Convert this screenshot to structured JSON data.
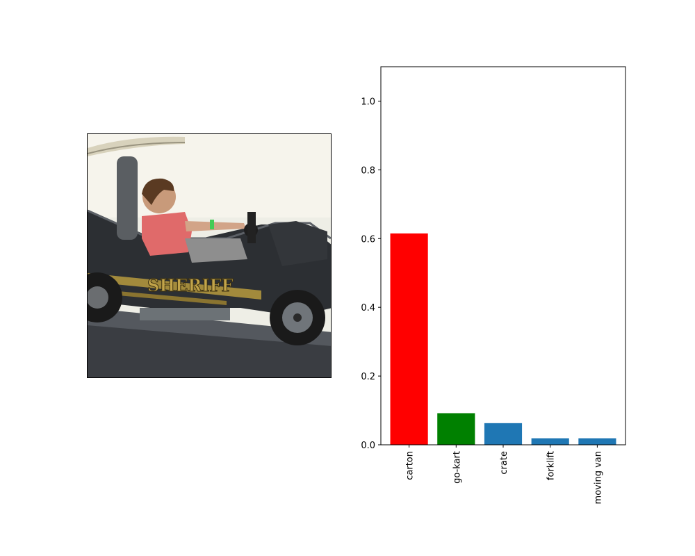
{
  "photo": {
    "subject": "child-driving-sheriff-go-kart",
    "decal_text": "SHERIFF"
  },
  "chart_data": {
    "type": "bar",
    "categories": [
      "carton",
      "go-kart",
      "crate",
      "forklift",
      "moving van"
    ],
    "values": [
      0.615,
      0.092,
      0.063,
      0.019,
      0.019
    ],
    "colors": [
      "#ff0000",
      "#008000",
      "#1f77b4",
      "#1f77b4",
      "#1f77b4"
    ],
    "ylim": [
      0,
      1.1
    ],
    "yticks": [
      0.0,
      0.2,
      0.4,
      0.6,
      0.8,
      1.0
    ],
    "ytick_labels": [
      "0.0",
      "0.2",
      "0.4",
      "0.6",
      "0.8",
      "1.0"
    ],
    "title": "",
    "xlabel": "",
    "ylabel": "",
    "grid": false
  }
}
